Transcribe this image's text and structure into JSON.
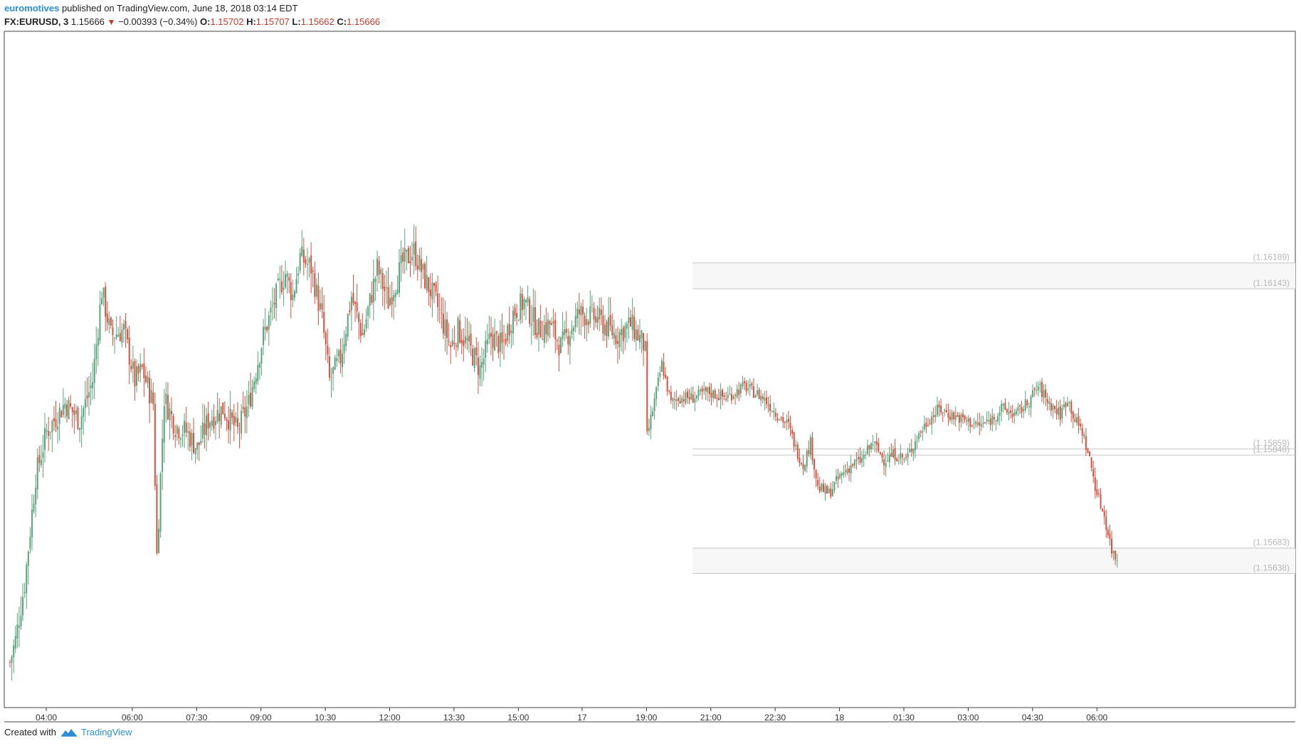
{
  "header": {
    "author": "euromotives",
    "published_text": "published on TradingView.com, June 18, 2018 03:14 EDT",
    "symbol": "FX:EURUSD, 3",
    "last": "1.15666",
    "down_arrow": "▼",
    "change": "−0.00393 (−0.34%)",
    "o_label": "O:",
    "o_value": "1.15702",
    "h_label": "H:",
    "h_value": "1.15707",
    "l_label": "L:",
    "l_value": "1.15662",
    "c_label": "C:",
    "c_value": "1.15666"
  },
  "footer": {
    "created_with": "Created with",
    "brand": "TradingView",
    "brand_icon": "tradingview-logo-icon"
  },
  "colors": {
    "up": "#5aa37a",
    "down": "#d9503f",
    "zone_fill": "#f7f7f7",
    "zone_line": "#c6c6c6",
    "price_label": "#b8b8b8",
    "axis": "#333333"
  },
  "chart_data": {
    "type": "candlestick",
    "symbol": "FX:EURUSD",
    "timeframe": "3",
    "x_ticks": [
      "04:00",
      "06:00",
      "07:30",
      "09:00",
      "10:30",
      "12:00",
      "13:30",
      "15:00",
      "17",
      "19:00",
      "21:00",
      "22:30",
      "18",
      "01:30",
      "03:00",
      "04:30",
      "06:00"
    ],
    "y_range": [
      1.154,
      1.166
    ],
    "y_axis_visible": false,
    "grid": false,
    "horizontal_levels": [
      {
        "price": 1.16189,
        "label": "(1.16189)"
      },
      {
        "price": 1.16143,
        "label": "(1.16143)"
      },
      {
        "price": 1.15859,
        "label": "(1.15859)"
      },
      {
        "price": 1.15848,
        "label": "(1.15848)"
      },
      {
        "price": 1.15683,
        "label": "(1.15683)"
      },
      {
        "price": 1.15638,
        "label": "(1.15638)"
      }
    ],
    "zones": [
      {
        "top": 1.16189,
        "bottom": 1.16143
      },
      {
        "top": 1.15683,
        "bottom": 1.15638
      }
    ],
    "close_path": [
      [
        0,
        1.1548
      ],
      [
        3,
        1.1552
      ],
      [
        8,
        1.1562
      ],
      [
        14,
        1.1581
      ],
      [
        20,
        1.1589
      ],
      [
        30,
        1.1594
      ],
      [
        38,
        1.1591
      ],
      [
        45,
        1.1598
      ],
      [
        50,
        1.1614
      ],
      [
        55,
        1.1606
      ],
      [
        62,
        1.1607
      ],
      [
        68,
        1.1598
      ],
      [
        72,
        1.16
      ],
      [
        78,
        1.1594
      ],
      [
        80,
        1.1567
      ],
      [
        84,
        1.1595
      ],
      [
        90,
        1.159
      ],
      [
        96,
        1.1589
      ],
      [
        102,
        1.1586
      ],
      [
        108,
        1.1591
      ],
      [
        116,
        1.1593
      ],
      [
        124,
        1.1589
      ],
      [
        130,
        1.1594
      ],
      [
        138,
        1.1606
      ],
      [
        146,
        1.1614
      ],
      [
        150,
        1.1617
      ],
      [
        154,
        1.1613
      ],
      [
        158,
        1.162
      ],
      [
        164,
        1.1618
      ],
      [
        170,
        1.1609
      ],
      [
        174,
        1.1598
      ],
      [
        180,
        1.1602
      ],
      [
        186,
        1.1613
      ],
      [
        192,
        1.1606
      ],
      [
        200,
        1.1618
      ],
      [
        206,
        1.1612
      ],
      [
        214,
        1.1619
      ],
      [
        220,
        1.1621
      ],
      [
        226,
        1.1616
      ],
      [
        232,
        1.1612
      ],
      [
        240,
        1.1604
      ],
      [
        244,
        1.1607
      ],
      [
        250,
        1.1604
      ],
      [
        256,
        1.16
      ],
      [
        262,
        1.1606
      ],
      [
        268,
        1.1604
      ],
      [
        274,
        1.161
      ],
      [
        280,
        1.1612
      ],
      [
        288,
        1.1607
      ],
      [
        294,
        1.1608
      ],
      [
        300,
        1.1604
      ],
      [
        310,
        1.161
      ],
      [
        320,
        1.1609
      ],
      [
        330,
        1.1606
      ],
      [
        338,
        1.1608
      ],
      [
        346,
        1.1604
      ],
      [
        347,
        1.1588
      ],
      [
        352,
        1.1596
      ],
      [
        355,
        1.1601
      ],
      [
        360,
        1.1594
      ],
      [
        364,
        1.1595
      ],
      [
        372,
        1.1595
      ],
      [
        380,
        1.1596
      ],
      [
        390,
        1.1595
      ],
      [
        400,
        1.1597
      ],
      [
        410,
        1.1595
      ],
      [
        418,
        1.1592
      ],
      [
        424,
        1.159
      ],
      [
        428,
        1.1586
      ],
      [
        432,
        1.1583
      ],
      [
        436,
        1.1587
      ],
      [
        440,
        1.1579
      ],
      [
        446,
        1.1578
      ],
      [
        452,
        1.1581
      ],
      [
        458,
        1.1583
      ],
      [
        464,
        1.1584
      ],
      [
        470,
        1.1587
      ],
      [
        476,
        1.1584
      ],
      [
        482,
        1.1585
      ],
      [
        488,
        1.1584
      ],
      [
        494,
        1.1588
      ],
      [
        500,
        1.1591
      ],
      [
        506,
        1.1593
      ],
      [
        512,
        1.1592
      ],
      [
        520,
        1.1591
      ],
      [
        528,
        1.159
      ],
      [
        534,
        1.1591
      ],
      [
        540,
        1.1593
      ],
      [
        548,
        1.1592
      ],
      [
        554,
        1.1594
      ],
      [
        560,
        1.1597
      ],
      [
        566,
        1.1594
      ],
      [
        572,
        1.1592
      ],
      [
        576,
        1.1595
      ],
      [
        580,
        1.1591
      ],
      [
        584,
        1.1589
      ],
      [
        588,
        1.1584
      ],
      [
        592,
        1.1578
      ],
      [
        596,
        1.1574
      ],
      [
        600,
        1.1568
      ],
      [
        602,
        1.15666
      ]
    ]
  }
}
